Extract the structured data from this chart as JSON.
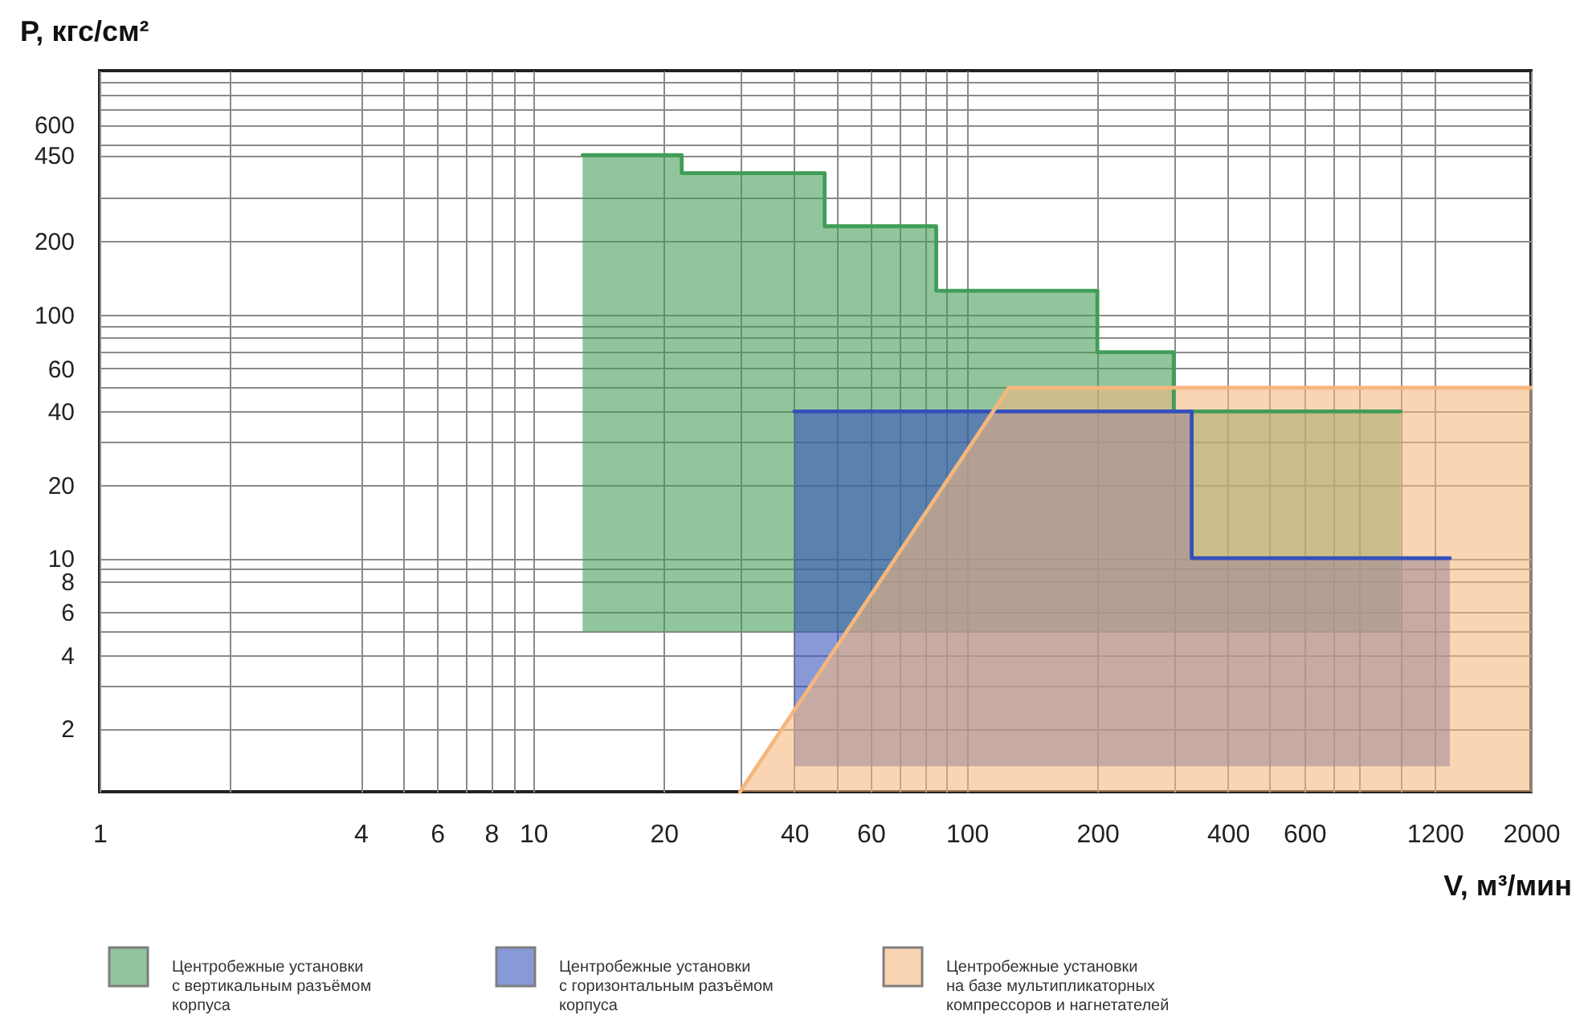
{
  "chart_data": {
    "type": "line",
    "xlabel": "V, м³/мин",
    "ylabel": "P, кгс/см²",
    "log": "xy",
    "xlim": [
      1,
      2000
    ],
    "ylim": [
      1.1,
      1000
    ],
    "xticks": [
      1,
      {
        "value": 2,
        "label": null
      },
      4,
      {
        "value": 5,
        "label": null
      },
      6,
      {
        "value": 7,
        "label": null
      },
      8,
      {
        "value": 9,
        "label": null
      },
      10,
      20,
      {
        "value": 30,
        "label": null
      },
      40,
      {
        "value": 50,
        "label": null
      },
      60,
      {
        "value": 70,
        "label": null
      },
      {
        "value": 80,
        "label": null
      },
      {
        "value": 90,
        "label": null
      },
      100,
      200,
      {
        "value": 300,
        "label": null
      },
      400,
      {
        "value": 500,
        "label": null
      },
      600,
      {
        "value": 700,
        "label": null
      },
      {
        "value": 800,
        "label": null
      },
      {
        "value": 1000,
        "label": null
      },
      1200,
      2000
    ],
    "yticks": [
      2,
      {
        "value": 3,
        "label": null
      },
      4,
      {
        "value": 5,
        "label": null
      },
      6,
      8,
      {
        "value": 9,
        "label": null
      },
      10,
      20,
      {
        "value": 30,
        "label": null
      },
      40,
      {
        "value": 50,
        "label": null
      },
      60,
      {
        "value": 70,
        "label": null
      },
      {
        "value": 80,
        "label": null
      },
      {
        "value": 90,
        "label": null
      },
      100,
      200,
      {
        "value": 300,
        "label": null
      },
      450,
      {
        "value": 500,
        "label": null
      },
      600,
      {
        "value": 700,
        "label": null
      },
      {
        "value": 800,
        "label": null
      },
      {
        "value": 900,
        "label": null
      }
    ],
    "grid": true,
    "legend": "bottom",
    "series": [
      {
        "name": "Центробежные установки с вертикальным разъёмом корпуса",
        "color": "#419d57",
        "x": [
          13,
          22,
          22,
          47,
          47,
          85,
          85,
          200,
          200,
          300,
          300,
          1000
        ],
        "values": [
          450,
          450,
          380,
          380,
          230,
          230,
          125,
          125,
          70,
          70,
          40,
          40
        ],
        "lower": [
          5,
          5,
          5,
          5,
          5,
          5,
          5,
          5,
          5,
          5,
          5,
          5
        ],
        "upper": [
          450,
          450,
          380,
          380,
          230,
          230,
          125,
          125,
          70,
          70,
          40,
          40
        ]
      },
      {
        "name": "Центробежные установки с горизонтальным разъёмом корпуса",
        "color": "#3450bb",
        "x": [
          40,
          330,
          330,
          1300
        ],
        "values": [
          40,
          40,
          10,
          10
        ],
        "lower": [
          1.4,
          1.4,
          1.4,
          1.4
        ],
        "upper": [
          40,
          40,
          10,
          10
        ]
      },
      {
        "name": "Центробежные установки на базе мультипликаторных компрессоров и нагнетателей",
        "color": "#f5b67d",
        "x": [
          30,
          125,
          2000
        ],
        "values": [
          1.1,
          50,
          50
        ],
        "lower": [
          1.1,
          1.1,
          1.1
        ],
        "upper": [
          1.1,
          50,
          50
        ]
      }
    ]
  }
}
